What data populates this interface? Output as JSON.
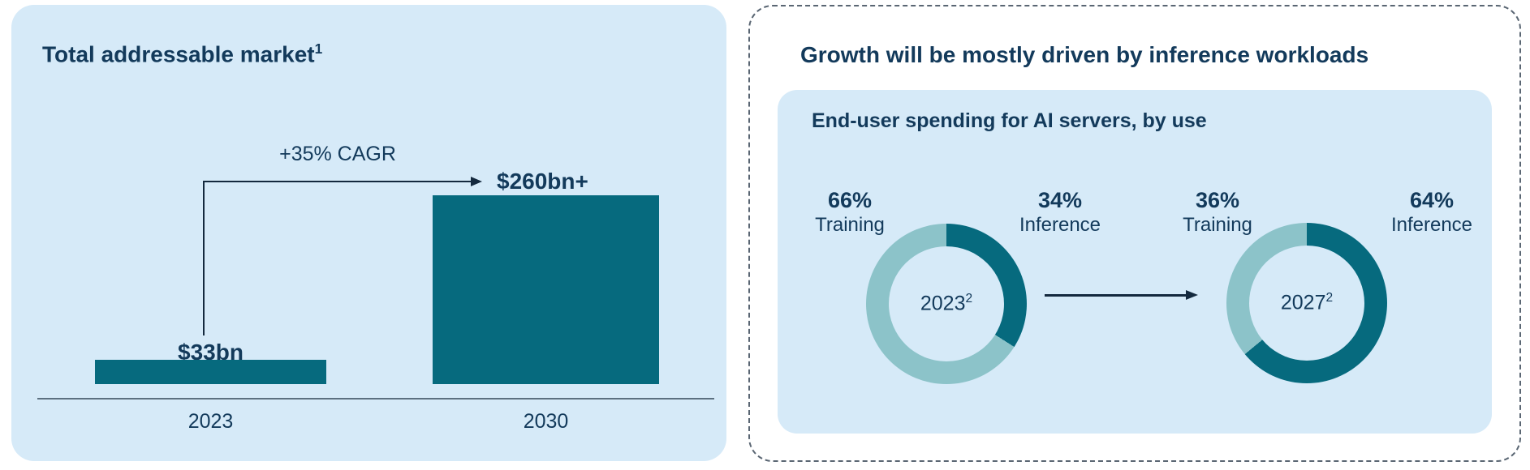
{
  "left_panel": {
    "title": "Total addressable market",
    "title_sup": "1",
    "cagr_label": "+35% CAGR",
    "bar_value_labels": [
      "$33bn",
      "$260bn+"
    ],
    "x_labels": [
      "2023",
      "2030"
    ]
  },
  "right_panel": {
    "title": "Growth will be mostly driven by inference workloads",
    "inner_title": "End-user spending for AI servers, by use",
    "donut_labels": [
      {
        "pct": "66%",
        "name": "Training"
      },
      {
        "pct": "34%",
        "name": "Inference"
      },
      {
        "pct": "36%",
        "name": "Training"
      },
      {
        "pct": "64%",
        "name": "Inference"
      }
    ],
    "donuts": [
      {
        "year": "2023",
        "sup": "2"
      },
      {
        "year": "2027",
        "sup": "2"
      }
    ]
  },
  "colors": {
    "dark_teal": "#066A7E",
    "light_teal": "#8CC3C9",
    "panel_blue": "#D6EAF8",
    "navy_text": "#133A5B",
    "axis_gray": "#5C7080",
    "arrow_navy": "#14293E",
    "dashed_border": "#5A6673"
  },
  "chart_data": [
    {
      "type": "bar",
      "title": "Total addressable market",
      "title_footnote": "1",
      "categories": [
        "2023",
        "2030"
      ],
      "values": [
        33,
        260
      ],
      "unit": "USD bn",
      "data_labels": [
        "$33bn",
        "$260bn+"
      ],
      "annotation": "+35% CAGR",
      "ylim": [
        0,
        280
      ],
      "grid": false,
      "legend": "none",
      "bar_color": "#066A7E"
    },
    {
      "type": "pie",
      "subtype": "donut",
      "title": "End-user spending for AI servers, by use",
      "series": [
        {
          "name": "2023",
          "footnote": "2",
          "slices": [
            {
              "label": "Training",
              "value": 66
            },
            {
              "label": "Inference",
              "value": 34
            }
          ]
        },
        {
          "name": "2027",
          "footnote": "2",
          "slices": [
            {
              "label": "Training",
              "value": 36
            },
            {
              "label": "Inference",
              "value": 64
            }
          ]
        }
      ],
      "slice_colors": {
        "Training": "#8CC3C9",
        "Inference": "#066A7E"
      },
      "start_angle": "top",
      "direction": "clockwise",
      "legend": "labels-around-charts"
    }
  ]
}
